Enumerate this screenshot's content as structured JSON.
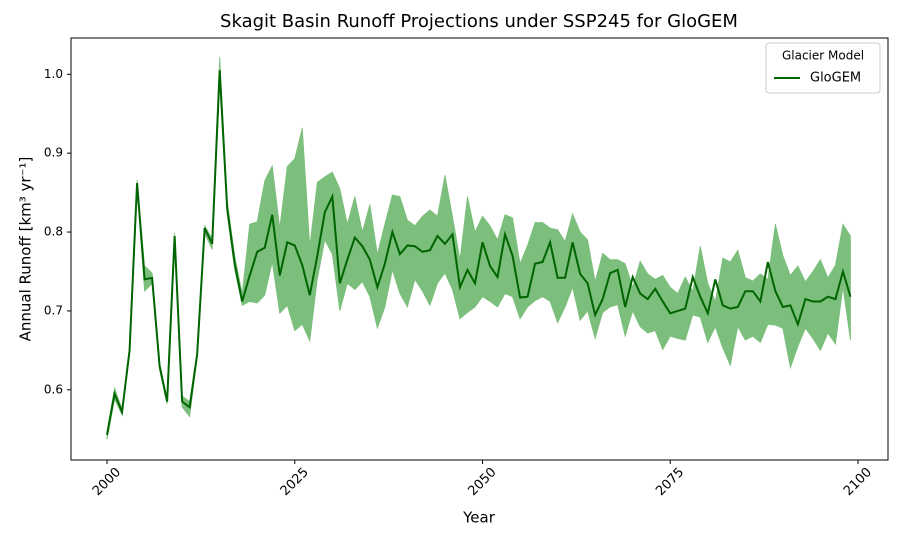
{
  "chart_data": {
    "type": "line_band",
    "title": "Skagit Basin Runoff Projections under SSP245 for GloGEM",
    "xlabel": "Year",
    "ylabel": "Annual Runoff [km³ yr⁻¹]",
    "legend_title": "Glacier Model",
    "legend_position": "upper right",
    "x": [
      2000,
      2001,
      2002,
      2003,
      2004,
      2005,
      2006,
      2007,
      2008,
      2009,
      2010,
      2011,
      2012,
      2013,
      2014,
      2015,
      2016,
      2017,
      2018,
      2019,
      2020,
      2021,
      2022,
      2023,
      2024,
      2025,
      2026,
      2027,
      2028,
      2029,
      2030,
      2031,
      2032,
      2033,
      2034,
      2035,
      2036,
      2037,
      2038,
      2039,
      2040,
      2041,
      2042,
      2043,
      2044,
      2045,
      2046,
      2047,
      2048,
      2049,
      2050,
      2051,
      2052,
      2053,
      2054,
      2055,
      2056,
      2057,
      2058,
      2059,
      2060,
      2061,
      2062,
      2063,
      2064,
      2065,
      2066,
      2067,
      2068,
      2069,
      2070,
      2071,
      2072,
      2073,
      2074,
      2075,
      2076,
      2077,
      2078,
      2079,
      2080,
      2081,
      2082,
      2083,
      2084,
      2085,
      2086,
      2087,
      2088,
      2089,
      2090,
      2091,
      2092,
      2093,
      2094,
      2095,
      2096,
      2097,
      2098,
      2099
    ],
    "series": [
      {
        "name": "GloGEM",
        "color": "#006400",
        "band_color": "#7cbf7c",
        "values": [
          0.543,
          0.595,
          0.572,
          0.65,
          0.862,
          0.74,
          0.742,
          0.63,
          0.585,
          0.795,
          0.585,
          0.578,
          0.645,
          0.805,
          0.785,
          1.005,
          0.83,
          0.76,
          0.712,
          0.745,
          0.775,
          0.78,
          0.822,
          0.745,
          0.787,
          0.783,
          0.758,
          0.72,
          0.77,
          0.825,
          0.845,
          0.735,
          0.765,
          0.793,
          0.782,
          0.765,
          0.73,
          0.76,
          0.8,
          0.772,
          0.783,
          0.782,
          0.775,
          0.777,
          0.795,
          0.785,
          0.797,
          0.73,
          0.752,
          0.735,
          0.787,
          0.757,
          0.743,
          0.797,
          0.77,
          0.717,
          0.718,
          0.76,
          0.762,
          0.787,
          0.742,
          0.742,
          0.787,
          0.747,
          0.735,
          0.695,
          0.715,
          0.748,
          0.752,
          0.705,
          0.743,
          0.722,
          0.715,
          0.728,
          0.712,
          0.697,
          0.7,
          0.703,
          0.743,
          0.718,
          0.697,
          0.74,
          0.707,
          0.703,
          0.705,
          0.725,
          0.725,
          0.712,
          0.762,
          0.725,
          0.705,
          0.707,
          0.683,
          0.715,
          0.712,
          0.712,
          0.718,
          0.715,
          0.75,
          0.718
        ],
        "lower": [
          0.537,
          0.588,
          0.568,
          0.646,
          0.855,
          0.725,
          0.735,
          0.625,
          0.582,
          0.79,
          0.578,
          0.566,
          0.64,
          0.798,
          0.778,
          0.99,
          0.822,
          0.752,
          0.707,
          0.712,
          0.71,
          0.72,
          0.762,
          0.697,
          0.707,
          0.675,
          0.683,
          0.662,
          0.74,
          0.79,
          0.772,
          0.7,
          0.735,
          0.727,
          0.737,
          0.718,
          0.678,
          0.705,
          0.752,
          0.722,
          0.705,
          0.74,
          0.725,
          0.707,
          0.735,
          0.748,
          0.727,
          0.69,
          0.698,
          0.705,
          0.718,
          0.712,
          0.705,
          0.722,
          0.718,
          0.69,
          0.705,
          0.713,
          0.718,
          0.712,
          0.685,
          0.705,
          0.73,
          0.688,
          0.7,
          0.665,
          0.698,
          0.705,
          0.708,
          0.668,
          0.7,
          0.68,
          0.672,
          0.675,
          0.651,
          0.668,
          0.665,
          0.663,
          0.695,
          0.692,
          0.66,
          0.68,
          0.653,
          0.631,
          0.68,
          0.663,
          0.668,
          0.66,
          0.683,
          0.682,
          0.678,
          0.628,
          0.655,
          0.678,
          0.665,
          0.65,
          0.672,
          0.658,
          0.73,
          0.663
        ],
        "upper": [
          0.548,
          0.602,
          0.576,
          0.655,
          0.866,
          0.757,
          0.748,
          0.634,
          0.589,
          0.799,
          0.592,
          0.585,
          0.648,
          0.808,
          0.792,
          1.022,
          0.84,
          0.77,
          0.722,
          0.81,
          0.813,
          0.865,
          0.884,
          0.805,
          0.883,
          0.893,
          0.932,
          0.782,
          0.863,
          0.87,
          0.876,
          0.855,
          0.81,
          0.845,
          0.8,
          0.835,
          0.772,
          0.81,
          0.847,
          0.845,
          0.815,
          0.808,
          0.82,
          0.828,
          0.82,
          0.872,
          0.82,
          0.765,
          0.845,
          0.8,
          0.82,
          0.808,
          0.79,
          0.822,
          0.818,
          0.76,
          0.783,
          0.812,
          0.812,
          0.805,
          0.803,
          0.788,
          0.823,
          0.8,
          0.79,
          0.737,
          0.773,
          0.765,
          0.765,
          0.76,
          0.73,
          0.763,
          0.747,
          0.74,
          0.745,
          0.73,
          0.722,
          0.743,
          0.725,
          0.782,
          0.735,
          0.712,
          0.767,
          0.762,
          0.777,
          0.742,
          0.738,
          0.747,
          0.74,
          0.81,
          0.77,
          0.745,
          0.757,
          0.737,
          0.75,
          0.765,
          0.742,
          0.758,
          0.81,
          0.795
        ]
      }
    ],
    "xlim": [
      1995.2,
      2104
    ],
    "ylim": [
      0.511,
      1.046
    ],
    "xticks": [
      2000,
      2025,
      2050,
      2075,
      2100
    ],
    "yticks": [
      0.6,
      0.7,
      0.8,
      0.9,
      {
        "value": 1,
        "label": "1.0"
      }
    ],
    "grid": false
  }
}
